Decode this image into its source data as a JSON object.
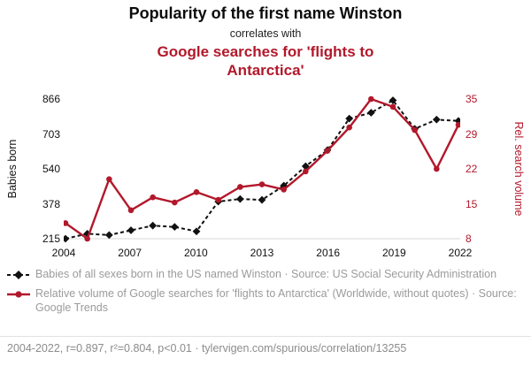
{
  "header": {
    "title": "Popularity of the first name Winston",
    "subtitle": "correlates with",
    "title2": "Google searches for 'flights to Antarctica'"
  },
  "colors": {
    "accent_red": "#b2182b",
    "series_black": "#111111",
    "legend_gray": "#9b9b9b"
  },
  "chart_data": {
    "type": "line",
    "title": "Popularity of the first name Winston correlates with Google searches for 'flights to Antarctica'",
    "x": [
      2004,
      2005,
      2006,
      2007,
      2008,
      2009,
      2010,
      2011,
      2012,
      2013,
      2014,
      2015,
      2016,
      2017,
      2018,
      2019,
      2020,
      2021,
      2022
    ],
    "x_ticks": [
      2004,
      2007,
      2010,
      2013,
      2016,
      2019,
      2022
    ],
    "left_axis": {
      "label": "Babies born",
      "ticks": [
        215,
        378,
        540,
        703,
        866
      ],
      "range": [
        215,
        866
      ]
    },
    "right_axis": {
      "label": "Rel. search volume",
      "ticks": [
        8,
        15,
        22,
        29,
        35
      ],
      "range": [
        8,
        35
      ]
    },
    "series": [
      {
        "name": "Babies of all sexes born in the US named Winston",
        "axis": "left",
        "color": "#111111",
        "marker": "diamond",
        "dash": true,
        "width": 2,
        "values": [
          215,
          238,
          232,
          254,
          276,
          270,
          249,
          388,
          400,
          396,
          462,
          553,
          628,
          775,
          802,
          860,
          727,
          770,
          764
        ]
      },
      {
        "name": "Relative volume of Google searches for 'flights to Antarctica'",
        "axis": "right",
        "color": "#b2182b",
        "marker": "circle",
        "dash": false,
        "width": 2.4,
        "values": [
          11,
          8,
          19.5,
          13.5,
          16,
          15,
          17,
          15.5,
          18,
          18.5,
          17.5,
          21,
          25,
          29.5,
          35,
          33.5,
          29,
          21.5,
          30
        ]
      }
    ],
    "grid": "bottom-axis-only",
    "legend_position": "below"
  },
  "legend": {
    "entry1": "Babies of all sexes born in the US named Winston · Source: US Social Security Administration",
    "entry2": "Relative volume of Google searches for 'flights to Antarctica' (Worldwide, without quotes) · Source: Google Trends"
  },
  "footer": "2004-2022, r=0.897, r²=0.804, p<0.01 · tylervigen.com/spurious/correlation/13255"
}
